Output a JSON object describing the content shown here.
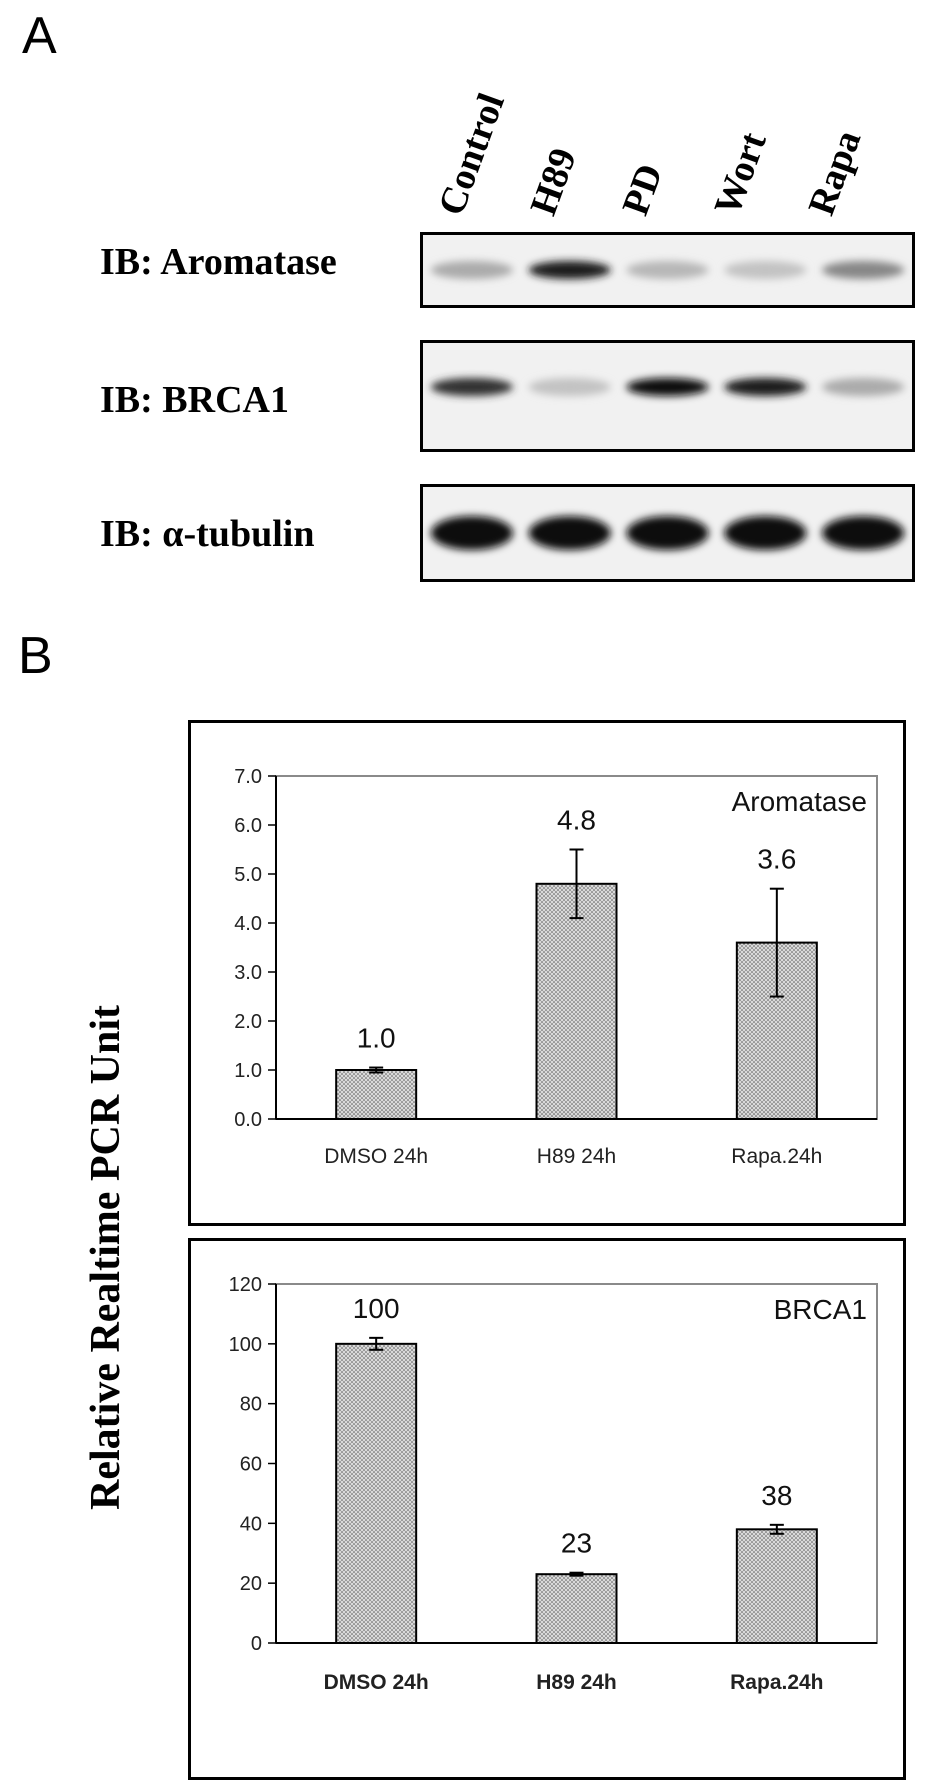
{
  "panelA": {
    "letter": "A",
    "lanes": [
      "Control",
      "H89",
      "PD",
      "Wort",
      "Rapa"
    ],
    "blots": [
      {
        "label": "IB: Aromatase",
        "intensities": [
          0.35,
          0.95,
          0.3,
          0.25,
          0.5
        ]
      },
      {
        "label": "IB: BRCA1",
        "intensities": [
          0.85,
          0.25,
          1.0,
          0.95,
          0.35
        ]
      },
      {
        "label": "IB: α-tubulin",
        "intensities": [
          1.0,
          1.0,
          1.0,
          1.0,
          1.0
        ]
      }
    ]
  },
  "panelB": {
    "letter": "B",
    "ylabel": "Relative Realtime PCR Unit"
  },
  "chart_data": [
    {
      "type": "bar",
      "title": "Aromatase",
      "categories": [
        "DMSO 24h",
        "H89 24h",
        "Rapa.24h"
      ],
      "values": [
        1.0,
        4.8,
        3.6
      ],
      "errors": [
        0.05,
        0.7,
        1.1
      ],
      "data_labels": [
        "1.0",
        "4.8",
        "3.6"
      ],
      "yticks": [
        "0.0",
        "1.0",
        "2.0",
        "3.0",
        "4.0",
        "5.0",
        "6.0",
        "7.0"
      ],
      "ylim": [
        0,
        7
      ],
      "grid": false,
      "bar_fill": "#d9d9d9"
    },
    {
      "type": "bar",
      "title": "BRCA1",
      "categories": [
        "DMSO 24h",
        "H89 24h",
        "Rapa.24h"
      ],
      "values": [
        100,
        23,
        38
      ],
      "errors": [
        2,
        0.5,
        1.5
      ],
      "data_labels": [
        "100",
        "23",
        "38"
      ],
      "yticks": [
        "0",
        "20",
        "40",
        "60",
        "80",
        "100",
        "120"
      ],
      "ylim": [
        0,
        120
      ],
      "grid": false,
      "bar_fill": "#d9d9d9"
    }
  ]
}
